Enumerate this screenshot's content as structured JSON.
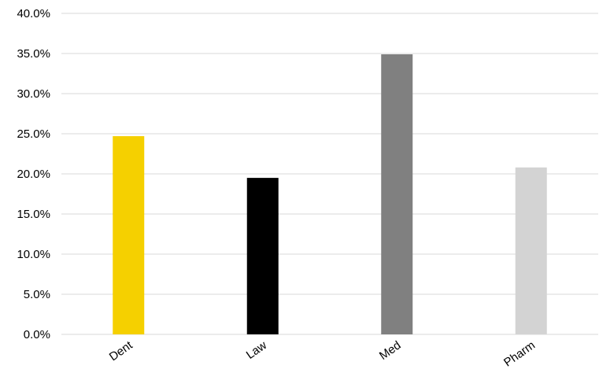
{
  "chart_data": {
    "type": "bar",
    "title": "",
    "xlabel": "",
    "ylabel": "",
    "categories": [
      "Dent",
      "Law",
      "Med",
      "Pharm"
    ],
    "values": [
      24.7,
      19.5,
      34.9,
      20.8
    ],
    "bar_colors": [
      "#f5d000",
      "#000000",
      "#808080",
      "#d3d3d3"
    ],
    "ylim": [
      0,
      40
    ],
    "ytick_step": 5,
    "ytick_labels": [
      "0.0%",
      "5.0%",
      "10.0%",
      "15.0%",
      "20.0%",
      "25.0%",
      "30.0%",
      "35.0%",
      "40.0%"
    ],
    "grid": true,
    "legend": "none",
    "xtick_rotation": -35
  }
}
